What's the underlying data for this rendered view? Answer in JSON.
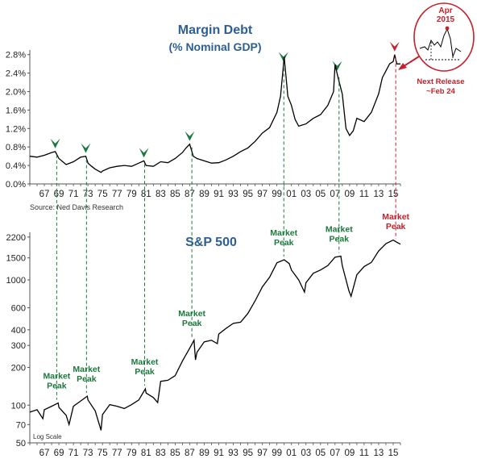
{
  "source": "Source: Ned Davis Research",
  "colors": {
    "title_blue": "#2e5f93",
    "peak_green": "#1a7a3c",
    "peak_red": "#c8202b",
    "line": "#000000",
    "axis": "#555555"
  },
  "inset": {
    "date_line1": "Apr",
    "date_line2": "2015",
    "release_line1": "Next Release",
    "release_line2": "~Feb 24"
  },
  "chart_data": [
    {
      "type": "line",
      "title": "Margin Debt",
      "subtitle": "(% Nominal GDP)",
      "yticks": [
        "0.0%",
        "0.4%",
        "0.8%",
        "1.2%",
        "1.6%",
        "2.0%",
        "2.4%",
        "2.8%"
      ],
      "ylim": [
        0,
        2.9
      ],
      "xticks": [
        "67",
        "69",
        "71",
        "73",
        "75",
        "77",
        "79",
        "81",
        "83",
        "85",
        "87",
        "89",
        "91",
        "93",
        "95",
        "97",
        "99",
        "01",
        "03",
        "05",
        "07",
        "09",
        "11",
        "13",
        "15"
      ],
      "xlim": [
        1965,
        2016
      ],
      "series": [
        {
          "x": [
            1965,
            1966,
            1967,
            1968,
            1968.5,
            1969,
            1970,
            1971,
            1972,
            1972.7,
            1973,
            1973.5,
            1974,
            1974.8,
            1975,
            1976,
            1977,
            1978,
            1979,
            1980,
            1980.7,
            1981,
            1982,
            1983,
            1984,
            1985,
            1986,
            1986.5,
            1987,
            1987.5,
            1988,
            1989,
            1990,
            1991,
            1992,
            1993,
            1994,
            1995,
            1996,
            1997,
            1998,
            1999,
            1999.5,
            2000,
            2000.5,
            2001,
            2001.5,
            2002,
            2003,
            2004,
            2005,
            2006,
            2006.8,
            2007,
            2007.5,
            2008,
            2008.5,
            2009,
            2009.5,
            2010,
            2011,
            2012,
            2013,
            2013.5,
            2014,
            2014.5,
            2015,
            2015.2,
            2015.5,
            2016
          ],
          "y": [
            0.6,
            0.58,
            0.62,
            0.68,
            0.7,
            0.55,
            0.42,
            0.48,
            0.58,
            0.6,
            0.45,
            0.38,
            0.32,
            0.25,
            0.28,
            0.35,
            0.38,
            0.4,
            0.38,
            0.45,
            0.5,
            0.4,
            0.38,
            0.48,
            0.46,
            0.55,
            0.68,
            0.78,
            0.86,
            0.6,
            0.55,
            0.5,
            0.45,
            0.46,
            0.52,
            0.6,
            0.7,
            0.78,
            0.92,
            1.1,
            1.22,
            1.55,
            1.9,
            2.75,
            1.9,
            1.7,
            1.4,
            1.25,
            1.3,
            1.42,
            1.5,
            1.7,
            2.0,
            2.58,
            2.25,
            1.95,
            1.2,
            1.05,
            1.15,
            1.42,
            1.35,
            1.55,
            1.95,
            2.3,
            2.45,
            2.6,
            2.65,
            2.8,
            2.6,
            2.6
          ]
        }
      ],
      "peaks": [
        1968.5,
        1972.7,
        1980.7,
        1987,
        1999.9,
        2007.3,
        2015.2
      ]
    },
    {
      "type": "line",
      "title": "S&P 500",
      "scale": "log",
      "scale_note": "Log Scale",
      "yticks": [
        "50",
        "70",
        "100",
        "200",
        "300",
        "400",
        "600",
        "1000",
        "1500",
        "2200"
      ],
      "ytick_values": [
        50,
        70,
        100,
        200,
        300,
        400,
        600,
        1000,
        1500,
        2200
      ],
      "ylim": [
        50,
        2400
      ],
      "xticks": [
        "67",
        "69",
        "71",
        "73",
        "75",
        "77",
        "79",
        "81",
        "83",
        "85",
        "87",
        "89",
        "91",
        "93",
        "95",
        "97",
        "99",
        "01",
        "03",
        "05",
        "07",
        "09",
        "11",
        "13",
        "15"
      ],
      "xlim": [
        1965,
        2016
      ],
      "series": [
        {
          "x": [
            1965,
            1966,
            1966.8,
            1967,
            1968,
            1968.9,
            1969,
            1970,
            1970.4,
            1971,
            1972,
            1972.9,
            1973,
            1974,
            1974.8,
            1975,
            1976,
            1977,
            1978,
            1979,
            1980,
            1980.9,
            1981,
            1982,
            1982.6,
            1983,
            1984,
            1985,
            1986,
            1987,
            1987.6,
            1987.8,
            1988,
            1989,
            1990,
            1990.8,
            1991,
            1992,
            1993,
            1994,
            1995,
            1996,
            1997,
            1998,
            1999,
            2000,
            2000.7,
            2001,
            2002,
            2002.8,
            2003,
            2004,
            2005,
            2006,
            2007,
            2007.8,
            2008,
            2008.9,
            2009.2,
            2010,
            2011,
            2012,
            2013,
            2014,
            2015,
            2015.5,
            2016
          ],
          "y": [
            88,
            92,
            78,
            92,
            98,
            104,
            96,
            83,
            70,
            98,
            108,
            118,
            110,
            90,
            63,
            84,
            101,
            98,
            94,
            101,
            110,
            135,
            125,
            115,
            105,
            155,
            158,
            172,
            225,
            285,
            330,
            230,
            265,
            320,
            330,
            310,
            370,
            410,
            450,
            460,
            540,
            680,
            880,
            1050,
            1370,
            1450,
            1350,
            1200,
            1000,
            800,
            950,
            1130,
            1200,
            1300,
            1520,
            1550,
            1300,
            820,
            740,
            1100,
            1280,
            1380,
            1700,
            1950,
            2080,
            2000,
            1930
          ]
        }
      ],
      "peaks": [
        1968.9,
        1972.9,
        1980.9,
        1987.6,
        2000,
        2007.8,
        2015.5
      ],
      "peak_label_line1": "Market",
      "peak_label_line2": "Peak"
    }
  ]
}
